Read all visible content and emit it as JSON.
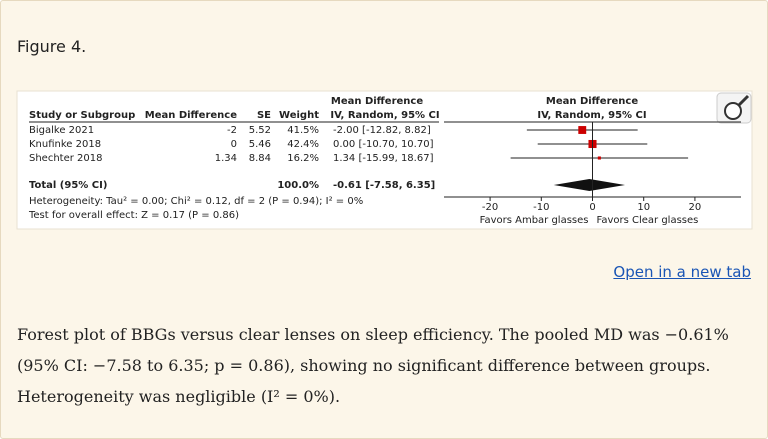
{
  "header": {
    "title": "Figure 4."
  },
  "figure": {
    "columns": {
      "study": "Study or Subgroup",
      "md": "Mean Difference",
      "se": "SE",
      "weight": "Weight",
      "ci_top": "Mean Difference",
      "ci_sub": "IV, Random, 95% CI",
      "plot_top": "Mean Difference",
      "plot_sub": "IV, Random, 95% CI"
    },
    "studies": [
      {
        "name": "Bigalke 2021",
        "md": -2,
        "se": 5.52,
        "weight": 41.5,
        "weight_label": "41.5%",
        "ci_label": "-2.00 [-12.82, 8.82]",
        "ci": [
          -12.82,
          8.82
        ]
      },
      {
        "name": "Knufinke 2018",
        "md": 0,
        "se": 5.46,
        "weight": 42.4,
        "weight_label": "42.4%",
        "ci_label": "0.00 [-10.70, 10.70]",
        "ci": [
          -10.7,
          10.7
        ]
      },
      {
        "name": "Shechter 2018",
        "md": 1.34,
        "se": 8.84,
        "weight": 16.2,
        "weight_label": "16.2%",
        "ci_label": "1.34 [-15.99, 18.67]",
        "ci": [
          -15.99,
          18.67
        ]
      }
    ],
    "total": {
      "name": "Total (95% CI)",
      "weight_label": "100.0%",
      "ci_label": "-0.61 [-7.58, 6.35]",
      "estimate": -0.61,
      "ci": [
        -7.58,
        6.35
      ]
    },
    "heterogeneity": "Heterogeneity: Tau² = 0.00; Chi² = 0.12, df = 2 (P = 0.94); I² = 0%",
    "overall": "Test for overall effect: Z = 0.17 (P = 0.86)",
    "xlim": [
      -29,
      29
    ],
    "xticks": [
      -20,
      -10,
      0,
      10,
      20
    ],
    "favors": [
      "Favors Ambar glasses",
      "Favors Clear glasses"
    ]
  },
  "link": "Open in a new tab",
  "caption": "Forest plot of BBGs versus clear lenses on sleep efficiency. The pooled MD was −0.61% (95% CI: −7.58 to 6.35; p = 0.86), showing no significant difference between groups. Heterogeneity was negligible (I² = 0%)."
}
